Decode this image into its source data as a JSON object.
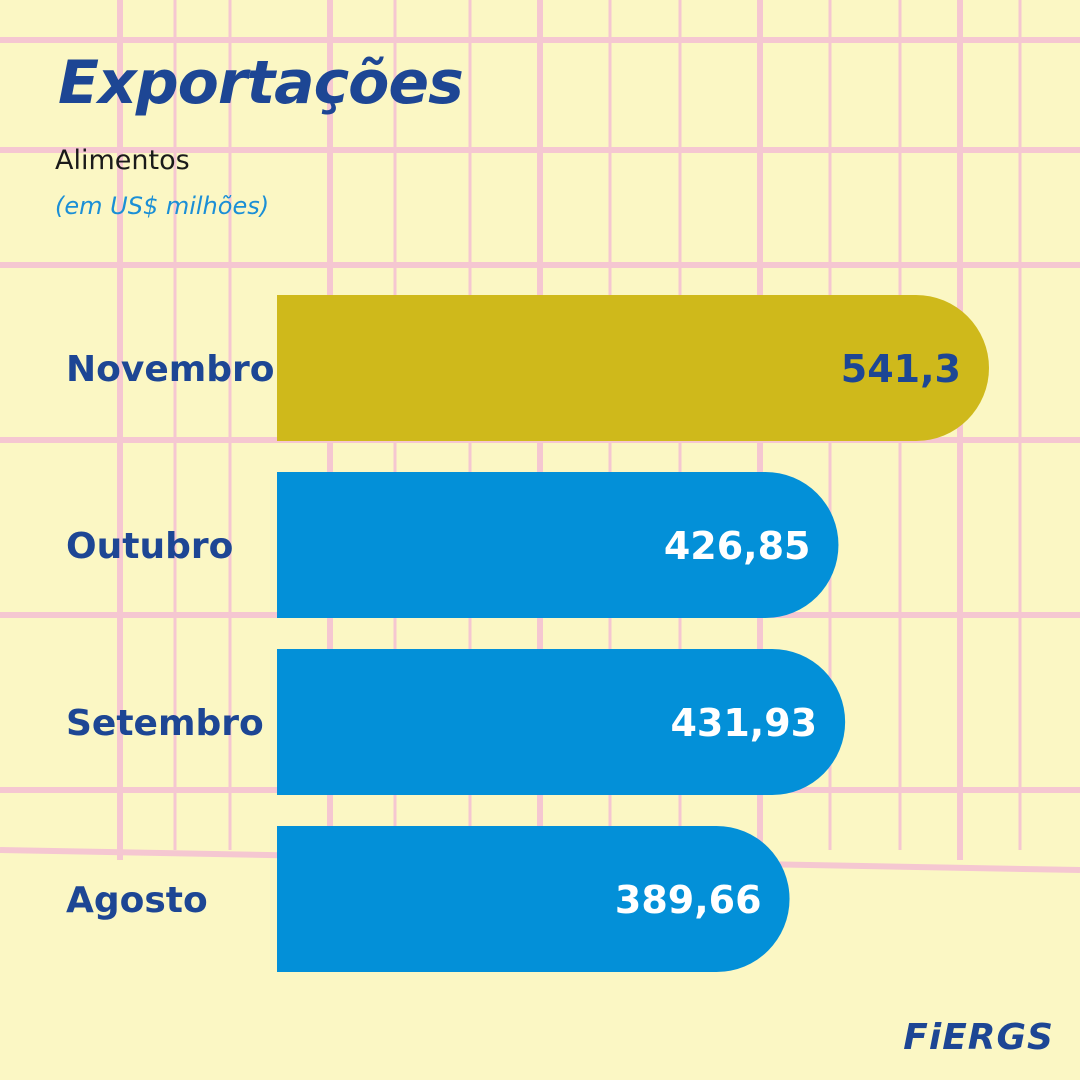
{
  "title": "Exportações",
  "subtitle": "Alimentos",
  "unit_label": "(em US$ milhões)",
  "logo_text": "FiERGS",
  "colors": {
    "highlight_bar": "#cfb91b",
    "default_bar": "#0390d8",
    "category_text": "#1d4694",
    "highlight_value_text": "#1d4694",
    "default_value_text": "#ffffff"
  },
  "chart_data": {
    "type": "bar",
    "orientation": "horizontal",
    "title": "Exportações",
    "subtitle": "Alimentos",
    "categories": [
      "Novembro",
      "Outubro",
      "Setembro",
      "Agosto"
    ],
    "values": [
      541.3,
      426.85,
      431.93,
      389.66
    ],
    "value_labels": [
      "541,3",
      "426,85",
      "431,93",
      "389,66"
    ],
    "highlight_index": 0
  }
}
